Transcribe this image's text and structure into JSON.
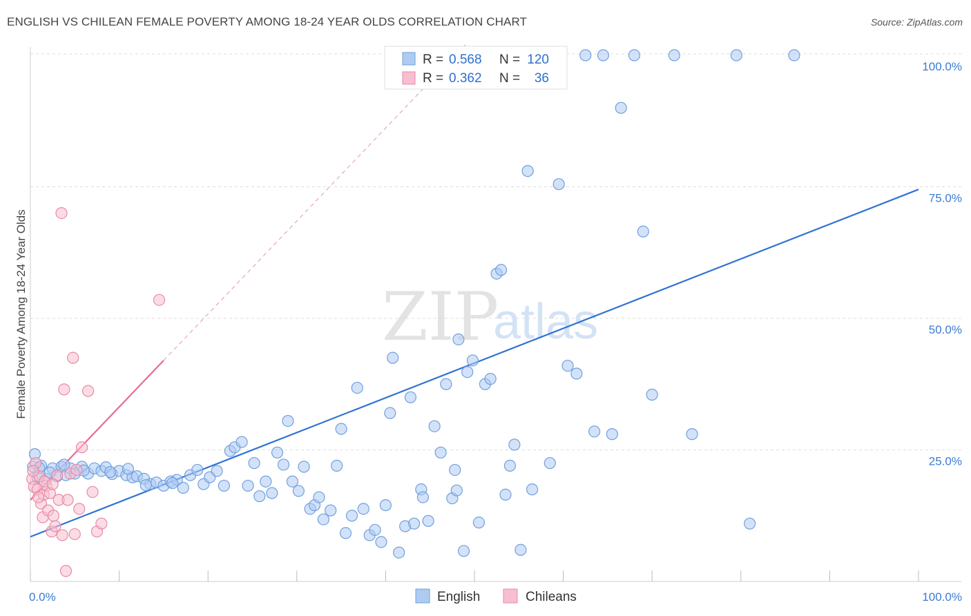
{
  "header": {
    "title": "ENGLISH VS CHILEAN FEMALE POVERTY AMONG 18-24 YEAR OLDS CORRELATION CHART",
    "source": "Source: ZipAtlas.com"
  },
  "watermark": {
    "zip": "ZIP",
    "atlas": "atlas"
  },
  "legend_box": {
    "rows": [
      {
        "r_label": "R =",
        "r_value": "0.568",
        "n_label": "N =",
        "n_value": "120",
        "color": "#aecbf2",
        "stroke": "#6fa0de"
      },
      {
        "r_label": "R =",
        "r_value": "0.362",
        "n_label": "N =",
        "n_value": "36",
        "color": "#f7bfd0",
        "stroke": "#e88aa6"
      }
    ]
  },
  "bottom_legend": [
    {
      "label": "English",
      "color": "#aecbf2",
      "stroke": "#6fa0de"
    },
    {
      "label": "Chileans",
      "color": "#f7bfd0",
      "stroke": "#e88aa6"
    }
  ],
  "chart_data": {
    "type": "scatter",
    "title": "ENGLISH VS CHILEAN FEMALE POVERTY AMONG 18-24 YEAR OLDS CORRELATION CHART",
    "xlabel": "",
    "ylabel": "Female Poverty Among 18-24 Year Olds",
    "xlim": [
      0,
      100
    ],
    "ylim": [
      0,
      100
    ],
    "x_tick_labels": [
      "0.0%",
      "100.0%"
    ],
    "y_tick_labels": [
      "25.0%",
      "50.0%",
      "75.0%",
      "100.0%"
    ],
    "y_ticks": [
      25,
      50,
      75,
      100
    ],
    "grid": true,
    "legend_position": "top-center",
    "series": [
      {
        "name": "English",
        "color": "#6fa0de",
        "fill": "#aecbf2",
        "trend": {
          "x": [
            0,
            100
          ],
          "y": [
            8.5,
            74.5
          ],
          "style": "solid"
        },
        "points": [
          [
            0.3,
            21.8
          ],
          [
            0.8,
            19.8
          ],
          [
            1.2,
            22.0
          ],
          [
            1.8,
            19.5
          ],
          [
            2.5,
            21.5
          ],
          [
            3.0,
            20.0
          ],
          [
            3.5,
            21.8
          ],
          [
            4.0,
            20.2
          ],
          [
            4.5,
            21.5
          ],
          [
            5.0,
            20.5
          ],
          [
            5.8,
            21.8
          ],
          [
            6.5,
            20.5
          ],
          [
            7.2,
            21.5
          ],
          [
            8.0,
            21.0
          ],
          [
            8.5,
            21.7
          ],
          [
            9.2,
            20.4
          ],
          [
            10.0,
            21.0
          ],
          [
            10.8,
            20.2
          ],
          [
            11.5,
            19.8
          ],
          [
            12.0,
            20.0
          ],
          [
            12.8,
            19.5
          ],
          [
            13.5,
            18.5
          ],
          [
            14.2,
            18.8
          ],
          [
            15.0,
            18.2
          ],
          [
            15.8,
            19.0
          ],
          [
            16.5,
            19.3
          ],
          [
            17.2,
            17.8
          ],
          [
            18.0,
            20.2
          ],
          [
            18.8,
            21.2
          ],
          [
            19.5,
            18.5
          ],
          [
            20.2,
            19.8
          ],
          [
            21.0,
            21.0
          ],
          [
            21.8,
            18.2
          ],
          [
            22.5,
            24.8
          ],
          [
            23.0,
            25.5
          ],
          [
            23.8,
            26.5
          ],
          [
            24.5,
            18.2
          ],
          [
            25.2,
            22.5
          ],
          [
            25.8,
            16.2
          ],
          [
            26.5,
            19.0
          ],
          [
            27.2,
            16.8
          ],
          [
            27.8,
            24.5
          ],
          [
            28.5,
            22.2
          ],
          [
            29.0,
            30.5
          ],
          [
            29.5,
            19.0
          ],
          [
            30.2,
            17.2
          ],
          [
            30.8,
            21.8
          ],
          [
            31.5,
            13.8
          ],
          [
            32.0,
            14.5
          ],
          [
            32.5,
            16.0
          ],
          [
            33.0,
            11.8
          ],
          [
            33.8,
            13.5
          ],
          [
            34.5,
            22.0
          ],
          [
            35.0,
            29.0
          ],
          [
            35.5,
            9.2
          ],
          [
            36.2,
            12.5
          ],
          [
            36.8,
            36.8
          ],
          [
            37.5,
            13.8
          ],
          [
            38.2,
            8.8
          ],
          [
            38.8,
            9.8
          ],
          [
            39.5,
            7.5
          ],
          [
            40.0,
            14.5
          ],
          [
            40.5,
            32.0
          ],
          [
            40.8,
            42.5
          ],
          [
            41.5,
            5.5
          ],
          [
            42.2,
            10.5
          ],
          [
            42.8,
            35.0
          ],
          [
            43.2,
            11.0
          ],
          [
            44.0,
            17.5
          ],
          [
            44.8,
            11.5
          ],
          [
            45.5,
            29.5
          ],
          [
            46.2,
            24.5
          ],
          [
            46.8,
            37.5
          ],
          [
            47.5,
            15.8
          ],
          [
            47.8,
            21.2
          ],
          [
            48.2,
            46.0
          ],
          [
            48.8,
            5.8
          ],
          [
            49.2,
            39.8
          ],
          [
            49.8,
            42.0
          ],
          [
            50.5,
            11.2
          ],
          [
            51.2,
            37.5
          ],
          [
            51.8,
            38.5
          ],
          [
            52.5,
            58.5
          ],
          [
            53.0,
            100.0
          ],
          [
            53.5,
            16.5
          ],
          [
            54.0,
            22.0
          ],
          [
            54.5,
            26.0
          ],
          [
            55.2,
            6.0
          ],
          [
            56.0,
            78.0
          ],
          [
            56.5,
            17.5
          ],
          [
            57.5,
            100.0
          ],
          [
            58.5,
            22.5
          ],
          [
            59.5,
            75.5
          ],
          [
            60.5,
            41.0
          ],
          [
            61.5,
            39.5
          ],
          [
            62.5,
            100.0
          ],
          [
            63.5,
            28.5
          ],
          [
            64.5,
            100.0
          ],
          [
            65.5,
            28.0
          ],
          [
            66.5,
            90.0
          ],
          [
            69.0,
            66.5
          ],
          [
            68.0,
            100.0
          ],
          [
            70.0,
            35.5
          ],
          [
            72.5,
            100.0
          ],
          [
            74.5,
            28.0
          ],
          [
            79.5,
            100.0
          ],
          [
            81.0,
            11.0
          ],
          [
            86.0,
            100.0
          ],
          [
            44.2,
            16.0
          ],
          [
            48.0,
            17.3
          ],
          [
            53.0,
            59.2
          ],
          [
            0.5,
            24.2
          ],
          [
            1.0,
            21.6
          ],
          [
            2.2,
            20.7
          ],
          [
            3.8,
            22.2
          ],
          [
            6.0,
            21.1
          ],
          [
            9.0,
            20.8
          ],
          [
            11.0,
            21.4
          ],
          [
            13.0,
            18.3
          ],
          [
            16.0,
            18.7
          ]
        ]
      },
      {
        "name": "Chileans",
        "color": "#e88aa6",
        "fill": "#f7bfd0",
        "trend": {
          "x": [
            0,
            15,
            100
          ],
          "y": [
            15.5,
            42.0,
            190.0
          ],
          "style": "solid-then-dashed"
        },
        "points": [
          [
            0.2,
            19.5
          ],
          [
            0.4,
            18.0
          ],
          [
            0.6,
            22.5
          ],
          [
            0.8,
            17.5
          ],
          [
            1.0,
            20.0
          ],
          [
            1.2,
            14.8
          ],
          [
            1.4,
            12.2
          ],
          [
            1.5,
            16.5
          ],
          [
            1.8,
            18.2
          ],
          [
            2.0,
            13.5
          ],
          [
            2.2,
            16.8
          ],
          [
            2.4,
            9.5
          ],
          [
            2.6,
            12.5
          ],
          [
            2.8,
            10.5
          ],
          [
            3.0,
            20.2
          ],
          [
            3.2,
            15.5
          ],
          [
            3.5,
            70.0
          ],
          [
            3.8,
            36.5
          ],
          [
            4.0,
            2.0
          ],
          [
            4.2,
            15.5
          ],
          [
            4.5,
            20.5
          ],
          [
            4.8,
            42.5
          ],
          [
            5.0,
            9.0
          ],
          [
            5.2,
            21.2
          ],
          [
            5.5,
            13.8
          ],
          [
            5.8,
            25.5
          ],
          [
            6.5,
            36.2
          ],
          [
            7.0,
            17.0
          ],
          [
            7.5,
            9.5
          ],
          [
            8.0,
            11.0
          ],
          [
            14.5,
            53.5
          ],
          [
            0.3,
            21.0
          ],
          [
            1.6,
            19.0
          ],
          [
            2.5,
            18.5
          ],
          [
            3.6,
            8.8
          ],
          [
            0.9,
            16.0
          ]
        ]
      }
    ]
  }
}
